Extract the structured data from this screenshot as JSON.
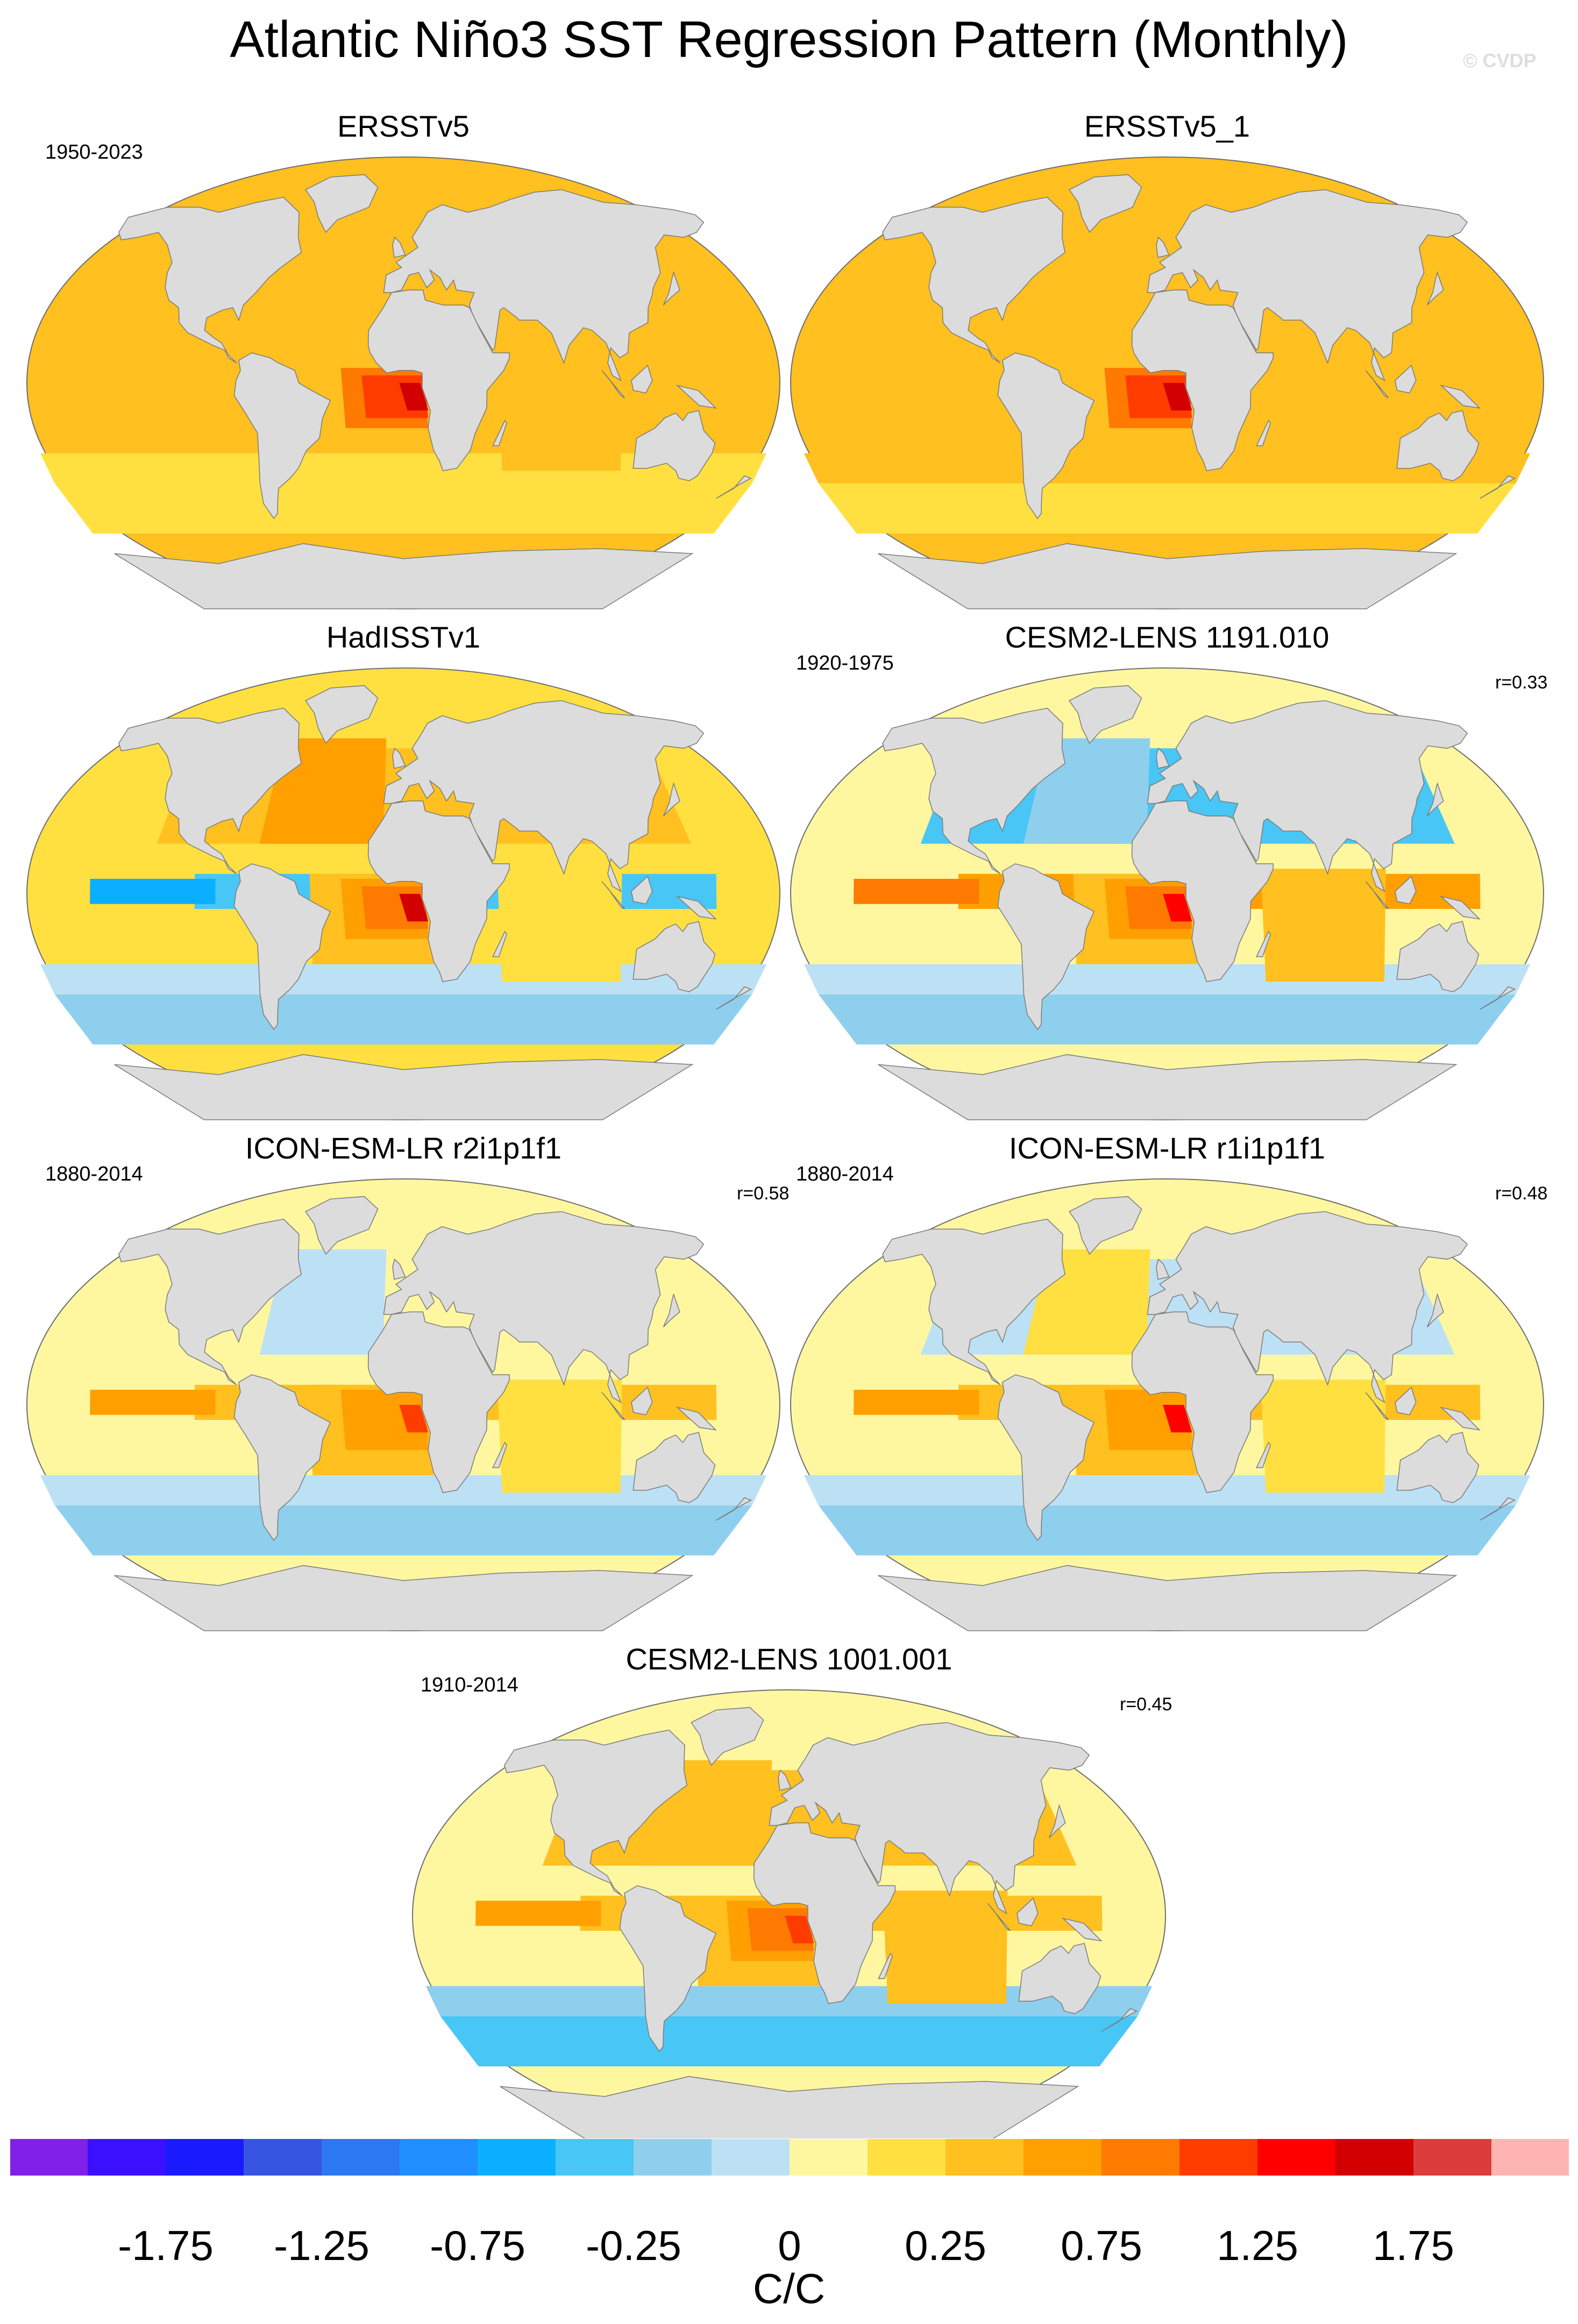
{
  "title": "Atlantic Niño3 SST Regression Pattern (Monthly)",
  "copyright": "© CVDP",
  "colors": {
    "land": "#dcdcdc",
    "coast": "#7a7a7a",
    "palette": [
      "#8020e8",
      "#3a10ff",
      "#1a1aff",
      "#3655e0",
      "#2b78f0",
      "#1f8fff",
      "#0ab0ff",
      "#48c6f6",
      "#8ecfee",
      "#bde1f4",
      "#fef7a0",
      "#ffe040",
      "#ffc020",
      "#ffa000",
      "#ff7a00",
      "#ff3c00",
      "#ff0000",
      "#d20000",
      "#dc3c3c",
      "#ffb4b4"
    ]
  },
  "chart_data": {
    "type": "heatmap",
    "projection": "Robinson (global ocean, land masked)",
    "variable": "SST regression onto Atlantic Niño3 index",
    "colorbar": {
      "levels": [
        -2.0,
        -1.75,
        -1.5,
        -1.25,
        -1.0,
        -0.75,
        -0.5,
        -0.25,
        -0.1,
        0,
        0.1,
        0.25,
        0.5,
        0.75,
        1.0,
        1.25,
        1.5,
        1.75,
        2.0
      ],
      "tick_labels": [
        "-1.75",
        "-1.25",
        "-0.75",
        "-0.25",
        "0",
        "0.25",
        "0.75",
        "1.25",
        "1.75"
      ],
      "units": "C/C",
      "orientation": "horizontal"
    },
    "panels": [
      {
        "name": "ERSSTv5",
        "period": "1950-2023",
        "r": "",
        "peak": 1.5,
        "atl_tongue": 1.0,
        "pac_eq": 0.25,
        "n_pac": 0.25,
        "ind": 0.35,
        "south": 0.1,
        "n_atl": 0.4,
        "background": 0.3
      },
      {
        "name": "ERSSTv5_1",
        "period": "",
        "r": "",
        "peak": 1.5,
        "atl_tongue": 1.0,
        "pac_eq": 0.35,
        "n_pac": 0.35,
        "ind": 0.35,
        "south": 0.2,
        "n_atl": 0.45,
        "background": 0.35
      },
      {
        "name": "HadISSTv1",
        "period": "",
        "r": "",
        "peak": 1.5,
        "atl_tongue": 0.9,
        "pac_eq": -0.5,
        "n_pac": 0.35,
        "ind": 0.2,
        "south": -0.2,
        "n_atl": 0.6,
        "background": 0.15
      },
      {
        "name": "CESM2-LENS 1191.010",
        "period": "1920-1975",
        "r": "r=0.33",
        "peak": 1.3,
        "atl_tongue": 0.8,
        "pac_eq": 0.7,
        "n_pac": -0.5,
        "ind": 0.45,
        "south": -0.2,
        "n_atl": -0.2,
        "background": 0.05
      },
      {
        "name": "ICON-ESM-LR r2i1p1f1",
        "period": "1880-2014",
        "r": "r=0.58",
        "peak": 1.2,
        "atl_tongue": 0.7,
        "pac_eq": 0.4,
        "n_pac": 0.05,
        "ind": 0.1,
        "south": -0.15,
        "n_atl": -0.05,
        "background": 0.05
      },
      {
        "name": "ICON-ESM-LR r1i1p1f1",
        "period": "1880-2014",
        "r": "r=0.48",
        "peak": 1.3,
        "atl_tongue": 0.7,
        "pac_eq": 0.4,
        "n_pac": -0.1,
        "ind": 0.2,
        "south": -0.15,
        "n_atl": 0.1,
        "background": 0.0
      },
      {
        "name": "CESM2-LENS 1001.001",
        "period": "1910-2014",
        "r": "r=0.45",
        "peak": 1.2,
        "atl_tongue": 0.75,
        "pac_eq": 0.45,
        "n_pac": 0.3,
        "ind": 0.3,
        "south": -0.3,
        "n_atl": 0.4,
        "background": 0.05
      }
    ]
  }
}
